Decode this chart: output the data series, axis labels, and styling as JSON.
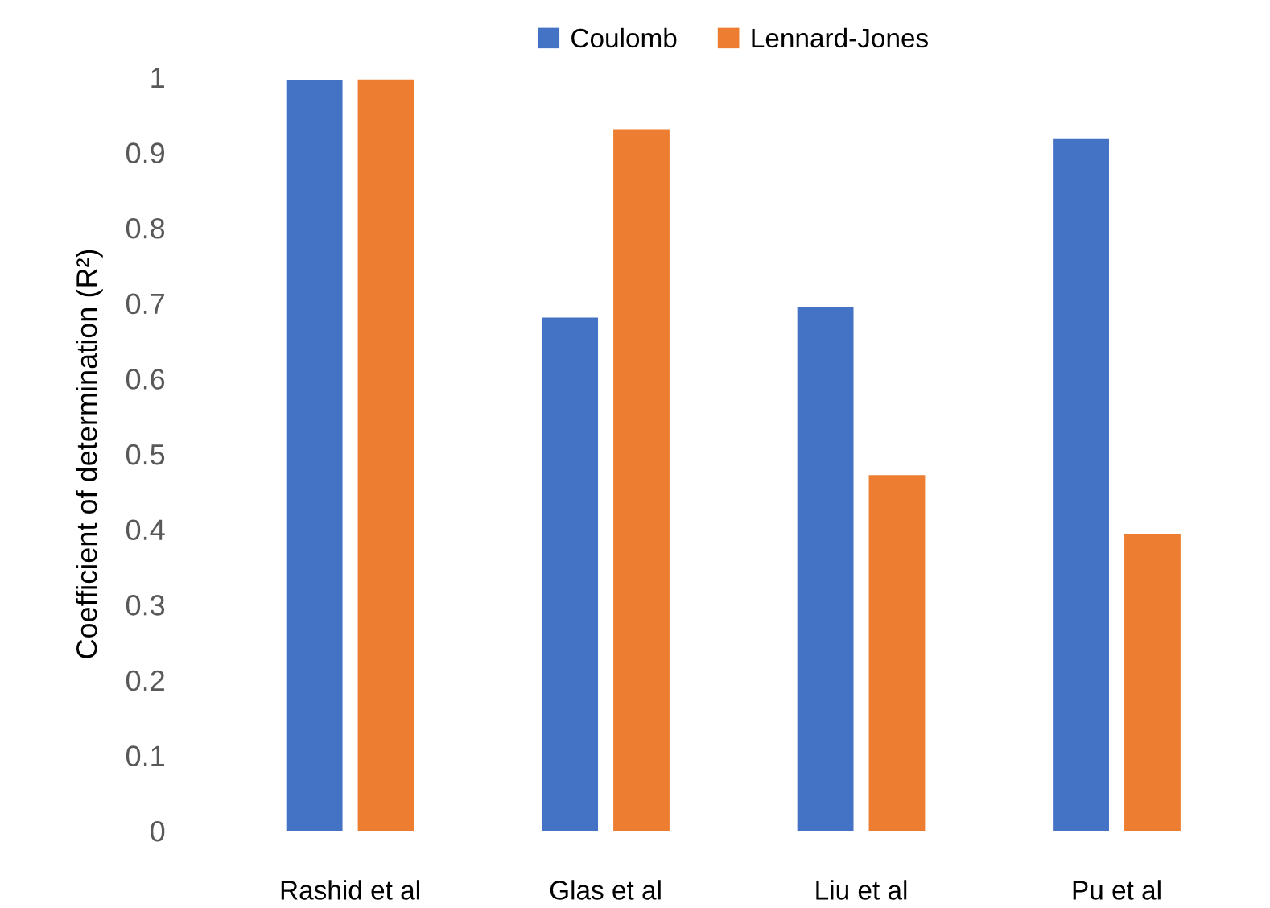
{
  "chart_data": {
    "type": "bar",
    "ylabel": "Coefficient of determination (R²)",
    "categories": [
      "Rashid et al",
      "Glas et al",
      "Liu et al",
      "Pu et al"
    ],
    "series": [
      {
        "name": "Coulomb",
        "color": "#4472c4",
        "values": [
          0.996,
          0.681,
          0.695,
          0.918
        ]
      },
      {
        "name": "Lennard-Jones",
        "color": "#ed7d31",
        "values": [
          0.997,
          0.931,
          0.472,
          0.394
        ]
      }
    ],
    "ylim": [
      0,
      1
    ],
    "yticks": [
      0,
      0.1,
      0.2,
      0.3,
      0.4,
      0.5,
      0.6,
      0.7,
      0.8,
      0.9,
      1
    ],
    "grid": false,
    "legend": "top"
  }
}
